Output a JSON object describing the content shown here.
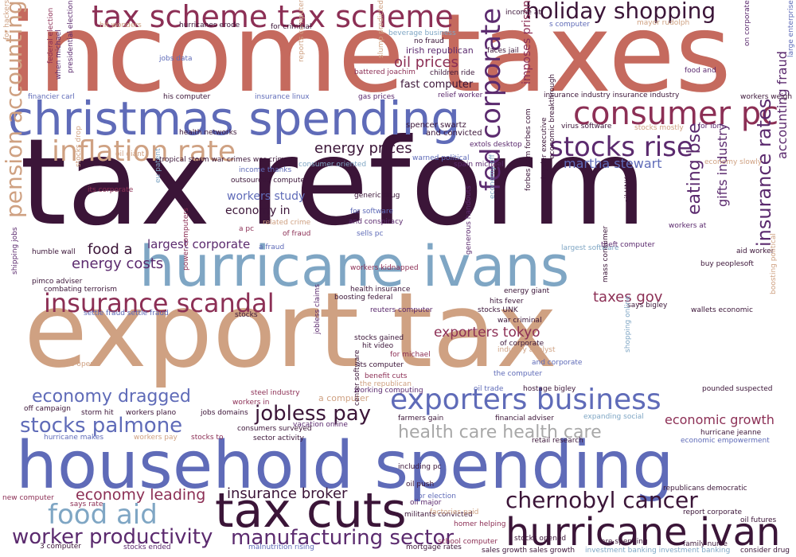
{
  "palette": {
    "dark_plum": "#3b1538",
    "purple": "#5b2a6e",
    "maroon": "#8c2f55",
    "salmon": "#c56a5e",
    "sand": "#cfa182",
    "blue": "#5f6bb8",
    "steel": "#7fa6c4",
    "gray": "#a8a8a8"
  },
  "words": [
    {
      "text": "income taxes",
      "color": "salmon"
    },
    {
      "text": "tax reform",
      "color": "dark_plum"
    },
    {
      "text": "export tax",
      "color": "sand"
    },
    {
      "text": "household spending",
      "color": "blue"
    },
    {
      "text": "hurricane ivans",
      "color": "steel"
    },
    {
      "text": "christmas spending",
      "color": "blue"
    },
    {
      "text": "tax scheme tax scheme",
      "color": "maroon"
    },
    {
      "text": "tax cuts",
      "color": "dark_plum"
    },
    {
      "text": "consumer pc",
      "color": "maroon"
    },
    {
      "text": "hurricane ivan",
      "color": "dark_plum"
    },
    {
      "text": "exporters business",
      "color": "blue"
    },
    {
      "text": "inflation rate",
      "color": "sand"
    },
    {
      "text": "stocks rise",
      "color": "purple"
    },
    {
      "text": "holiday shopping",
      "color": "dark_plum"
    },
    {
      "text": "insurance scandal",
      "color": "maroon"
    },
    {
      "text": "fed corporate",
      "color": "purple"
    },
    {
      "text": "chernobyl cancer",
      "color": "dark_plum"
    },
    {
      "text": "manufacturing sector",
      "color": "purple"
    },
    {
      "text": "worker productivity",
      "color": "purple"
    },
    {
      "text": "food aid",
      "color": "steel"
    },
    {
      "text": "stocks palmone",
      "color": "blue"
    },
    {
      "text": "jobless pay",
      "color": "dark_plum"
    },
    {
      "text": "pension accounting",
      "color": "sand"
    },
    {
      "text": "health care health care",
      "color": "gray"
    },
    {
      "text": "economy dragged",
      "color": "blue"
    },
    {
      "text": "insurance broker",
      "color": "dark_plum"
    },
    {
      "text": "economy leading",
      "color": "maroon"
    },
    {
      "text": "energy prices",
      "color": "dark_plum"
    },
    {
      "text": "insurance rates",
      "color": "purple"
    },
    {
      "text": "eating bse",
      "color": "purple"
    },
    {
      "text": "taxes gov",
      "color": "maroon"
    },
    {
      "text": "exporters tokyo",
      "color": "maroon"
    },
    {
      "text": "oil prices",
      "color": "maroon"
    },
    {
      "text": "economic growth",
      "color": "maroon"
    },
    {
      "text": "accounting fraud",
      "color": "purple"
    },
    {
      "text": "energy costs",
      "color": "purple"
    },
    {
      "text": "food a",
      "color": "dark_plum"
    },
    {
      "text": "martha stewart",
      "color": "blue"
    },
    {
      "text": "workers study",
      "color": "blue"
    },
    {
      "text": "gifts industry",
      "color": "purple"
    },
    {
      "text": "imposes prison",
      "color": "maroon"
    },
    {
      "text": "largest corporate",
      "color": "purple"
    },
    {
      "text": "economy in",
      "color": "dark_plum"
    },
    {
      "text": "irish republican",
      "color": "purple"
    },
    {
      "text": "fast computer",
      "color": "dark_plum"
    },
    {
      "text": "reports computer",
      "color": "sand"
    },
    {
      "text": "spencer swartz",
      "color": "dark_plum"
    },
    {
      "text": "and convicted",
      "color": "dark_plum"
    },
    {
      "text": "for hackers",
      "color": "sand"
    },
    {
      "text": "hit wonders",
      "color": "sand"
    },
    {
      "text": "presidential election",
      "color": "purple"
    },
    {
      "text": "federal election",
      "color": "maroon"
    },
    {
      "text": "when michael",
      "color": "purple"
    },
    {
      "text": "hurricanes erode",
      "color": "dark_plum"
    },
    {
      "text": "for criminal",
      "color": "dark_plum"
    },
    {
      "text": "beverage business",
      "color": "steel"
    },
    {
      "text": "no fraud",
      "color": "dark_plum"
    },
    {
      "text": "faces jail",
      "color": "dark_plum"
    },
    {
      "text": "slump predicted",
      "color": "sand"
    },
    {
      "text": "children ride",
      "color": "dark_plum"
    },
    {
      "text": "battered joachim",
      "color": "maroon"
    },
    {
      "text": "jobs data",
      "color": "blue"
    },
    {
      "text": "income at",
      "color": "dark_plum"
    },
    {
      "text": "s computer",
      "color": "blue"
    },
    {
      "text": "mayor rudolph",
      "color": "sand"
    },
    {
      "text": "on corporate",
      "color": "purple"
    },
    {
      "text": "food and",
      "color": "purple"
    },
    {
      "text": "large enterprise",
      "color": "blue"
    },
    {
      "text": "workers weigh",
      "color": "dark_plum"
    },
    {
      "text": "financier carl",
      "color": "blue"
    },
    {
      "text": "his computer",
      "color": "dark_plum"
    },
    {
      "text": "insurance linux",
      "color": "blue"
    },
    {
      "text": "gas prices",
      "color": "purple"
    },
    {
      "text": "relief worker",
      "color": "purple"
    },
    {
      "text": "insurance industry insurance industry",
      "color": "dark_plum"
    },
    {
      "text": "health networks",
      "color": "dark_plum"
    },
    {
      "text": "virus software",
      "color": "dark_plum"
    },
    {
      "text": "stocks mostly",
      "color": "sand"
    },
    {
      "text": "for ibm",
      "color": "purple"
    },
    {
      "text": "oil giant",
      "color": "sand"
    },
    {
      "text": "tropical storm war crimes war crimes",
      "color": "dark_plum"
    },
    {
      "text": "warned political",
      "color": "blue"
    },
    {
      "text": "extols desktop",
      "color": "purple"
    },
    {
      "text": "spain michael",
      "color": "purple"
    },
    {
      "text": "economy slowly",
      "color": "sand"
    },
    {
      "text": "income thanks",
      "color": "blue"
    },
    {
      "text": "consumer oriented",
      "color": "steel"
    },
    {
      "text": "its corporate",
      "color": "maroon"
    },
    {
      "text": "outsourced computer",
      "color": "dark_plum"
    },
    {
      "text": "eu patent",
      "color": "steel"
    },
    {
      "text": "stocks drop",
      "color": "sand"
    },
    {
      "text": "generic drug",
      "color": "dark_plum"
    },
    {
      "text": "for software",
      "color": "blue"
    },
    {
      "text": "economic breakthrough",
      "color": "dark_plum"
    },
    {
      "text": "chrysler executive",
      "color": "dark_plum"
    },
    {
      "text": "forbes com forbes com",
      "color": "dark_plum"
    },
    {
      "text": "oil UNK",
      "color": "dark_plum"
    },
    {
      "text": "related crime",
      "color": "sand"
    },
    {
      "text": "a pc",
      "color": "maroon"
    },
    {
      "text": "of fraud",
      "color": "maroon"
    },
    {
      "text": "and conspiracy",
      "color": "purple"
    },
    {
      "text": "sells pc",
      "color": "blue"
    },
    {
      "text": "economy off",
      "color": "steel"
    },
    {
      "text": "workers at",
      "color": "purple"
    },
    {
      "text": "humble wall",
      "color": "dark_plum"
    },
    {
      "text": "a fraud",
      "color": "blue"
    },
    {
      "text": "largest software",
      "color": "steel"
    },
    {
      "text": "theft computer",
      "color": "purple"
    },
    {
      "text": "aid worker",
      "color": "dark_plum"
    },
    {
      "text": "buy peoplesoft",
      "color": "dark_plum"
    },
    {
      "text": "workers kidnapped",
      "color": "maroon"
    },
    {
      "text": "pimco adviser",
      "color": "dark_plum"
    },
    {
      "text": "combating terrorism",
      "color": "dark_plum"
    },
    {
      "text": "shipping jobs",
      "color": "purple"
    },
    {
      "text": "health insurance",
      "color": "dark_plum"
    },
    {
      "text": "boosting federal",
      "color": "dark_plum"
    },
    {
      "text": "generous handouts",
      "color": "purple"
    },
    {
      "text": "energy giant",
      "color": "dark_plum"
    },
    {
      "text": "hits fever",
      "color": "dark_plum"
    },
    {
      "text": "stocks UNK",
      "color": "dark_plum"
    },
    {
      "text": "power computers",
      "color": "maroon"
    },
    {
      "text": "reuters computer",
      "color": "purple"
    },
    {
      "text": "says bigley",
      "color": "dark_plum"
    },
    {
      "text": "wallets economic",
      "color": "dark_plum"
    },
    {
      "text": "settle fraud settle fraud",
      "color": "blue"
    },
    {
      "text": "stocks",
      "color": "dark_plum"
    },
    {
      "text": "war criminal",
      "color": "dark_plum"
    },
    {
      "text": "mass consumer",
      "color": "dark_plum"
    },
    {
      "text": "boosting political",
      "color": "sand"
    },
    {
      "text": "stocks gained",
      "color": "dark_plum"
    },
    {
      "text": "hit video",
      "color": "dark_plum"
    },
    {
      "text": "jobless claims",
      "color": "purple"
    },
    {
      "text": "of corporate",
      "color": "dark_plum"
    },
    {
      "text": "for michael",
      "color": "maroon"
    },
    {
      "text": "industry analyst",
      "color": "sand"
    },
    {
      "text": "and corporate",
      "color": "blue"
    },
    {
      "text": "its computer",
      "color": "dark_plum"
    },
    {
      "text": "the computer",
      "color": "blue"
    },
    {
      "text": "shopping online",
      "color": "steel"
    },
    {
      "text": "stocks open",
      "color": "sand"
    },
    {
      "text": "benefit cuts",
      "color": "maroon"
    },
    {
      "text": "the republican",
      "color": "sand"
    },
    {
      "text": "working computing",
      "color": "purple"
    },
    {
      "text": "oil trade",
      "color": "blue"
    },
    {
      "text": "hostage bigley",
      "color": "dark_plum"
    },
    {
      "text": "pounded suspected",
      "color": "dark_plum"
    },
    {
      "text": "off campaign",
      "color": "dark_plum"
    },
    {
      "text": "steel industry",
      "color": "maroon"
    },
    {
      "text": "a computer",
      "color": "sand"
    },
    {
      "text": "workers in",
      "color": "maroon"
    },
    {
      "text": "financial adviser",
      "color": "dark_plum"
    },
    {
      "text": "farmers gain",
      "color": "dark_plum"
    },
    {
      "text": "expanding social",
      "color": "steel"
    },
    {
      "text": "storm hit",
      "color": "dark_plum"
    },
    {
      "text": "workers plano",
      "color": "dark_plum"
    },
    {
      "text": "jobs domains",
      "color": "dark_plum"
    },
    {
      "text": "vacation online",
      "color": "purple"
    },
    {
      "text": "consumers surveyed",
      "color": "dark_plum"
    },
    {
      "text": "center software",
      "color": "dark_plum"
    },
    {
      "text": "hurricane jeanne",
      "color": "dark_plum"
    },
    {
      "text": "economic empowerment",
      "color": "blue"
    },
    {
      "text": "hurricane makes",
      "color": "blue"
    },
    {
      "text": "workers pay",
      "color": "sand"
    },
    {
      "text": "stocks to",
      "color": "maroon"
    },
    {
      "text": "sector activity",
      "color": "dark_plum"
    },
    {
      "text": "retail research",
      "color": "dark_plum"
    },
    {
      "text": "including pc",
      "color": "dark_plum"
    },
    {
      "text": "oil push",
      "color": "dark_plum"
    },
    {
      "text": "for election",
      "color": "blue"
    },
    {
      "text": "oil major",
      "color": "purple"
    },
    {
      "text": "republicans democratic",
      "color": "dark_plum"
    },
    {
      "text": "report corporate",
      "color": "dark_plum"
    },
    {
      "text": "new computer",
      "color": "maroon"
    },
    {
      "text": "militants convicted",
      "color": "dark_plum"
    },
    {
      "text": "homer helping",
      "color": "maroon"
    },
    {
      "text": "says rate",
      "color": "maroon"
    },
    {
      "text": "factories paid",
      "color": "sand"
    },
    {
      "text": "stocks opened",
      "color": "dark_plum"
    },
    {
      "text": "are spending",
      "color": "dark_plum"
    },
    {
      "text": "family nurse",
      "color": "dark_plum"
    },
    {
      "text": "oil futures",
      "color": "dark_plum"
    },
    {
      "text": "school computer",
      "color": "maroon"
    },
    {
      "text": "3 computer",
      "color": "dark_plum"
    },
    {
      "text": "stocks ended",
      "color": "purple"
    },
    {
      "text": "malnutrition rising",
      "color": "blue"
    },
    {
      "text": "mortgage rates",
      "color": "dark_plum"
    },
    {
      "text": "sales growth sales growth",
      "color": "dark_plum"
    },
    {
      "text": "investment banking investment banking",
      "color": "steel"
    },
    {
      "text": "consider drug",
      "color": "dark_plum"
    }
  ]
}
